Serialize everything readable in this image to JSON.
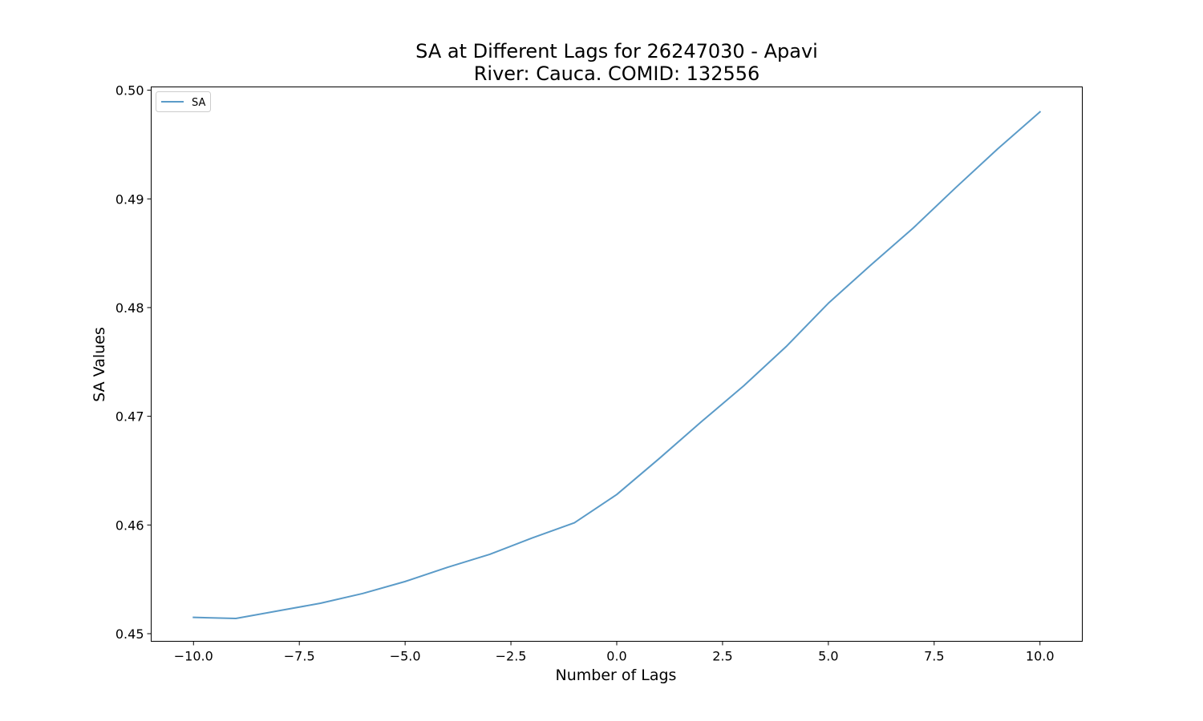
{
  "chart_data": {
    "type": "line",
    "title": "SA at Different Lags for 26247030 - Apavi",
    "subtitle": "River: Cauca. COMID: 132556",
    "xlabel": "Number of Lags",
    "ylabel": "SA Values",
    "xlim": [
      -11,
      11
    ],
    "ylim": [
      0.4493,
      0.5003
    ],
    "xticks": [
      -10.0,
      -7.5,
      -5.0,
      -2.5,
      0.0,
      2.5,
      5.0,
      7.5,
      10.0
    ],
    "xtick_labels": [
      "−10.0",
      "−7.5",
      "−5.0",
      "−2.5",
      "0.0",
      "2.5",
      "5.0",
      "7.5",
      "10.0"
    ],
    "yticks": [
      0.45,
      0.46,
      0.47,
      0.48,
      0.49,
      0.5
    ],
    "ytick_labels": [
      "0.45",
      "0.46",
      "0.47",
      "0.48",
      "0.49",
      "0.50"
    ],
    "grid": false,
    "legend_position": "top-left",
    "series": [
      {
        "name": "SA",
        "color": "#5b9bc8",
        "x": [
          -10,
          -9,
          -8,
          -7,
          -6,
          -5,
          -4,
          -3,
          -2,
          -1,
          0,
          1,
          2,
          3,
          4,
          5,
          6,
          7,
          8,
          9,
          10
        ],
        "y": [
          0.4515,
          0.4514,
          0.4521,
          0.4528,
          0.4537,
          0.4548,
          0.4561,
          0.4573,
          0.4588,
          0.4602,
          0.4628,
          0.4661,
          0.4695,
          0.4728,
          0.4764,
          0.4804,
          0.4839,
          0.4873,
          0.491,
          0.4946,
          0.498
        ]
      }
    ]
  }
}
